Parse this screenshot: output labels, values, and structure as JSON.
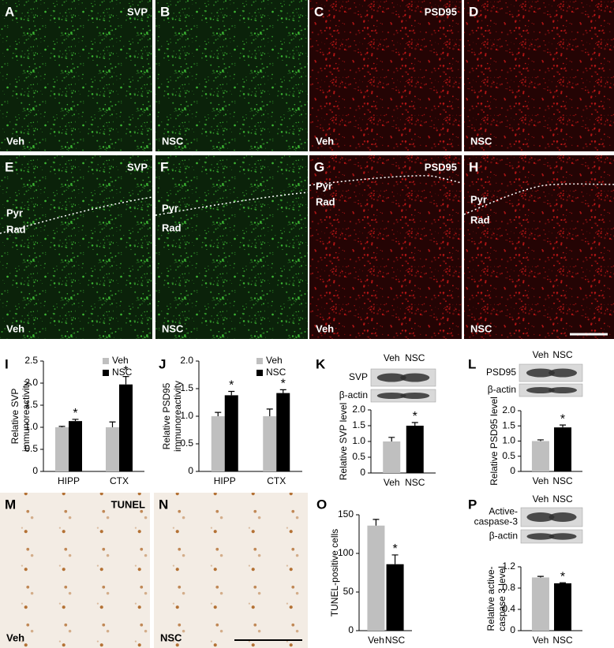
{
  "panels": [
    {
      "letter": "A",
      "stain": "SVP",
      "group": "Veh"
    },
    {
      "letter": "B",
      "group": "NSC"
    },
    {
      "letter": "C",
      "stain": "PSD95",
      "group": "Veh"
    },
    {
      "letter": "D",
      "group": "NSC"
    },
    {
      "letter": "E",
      "stain": "SVP",
      "group": "Veh",
      "layers": [
        "Pyr",
        "Rad"
      ]
    },
    {
      "letter": "F",
      "group": "NSC",
      "layers": [
        "Pyr",
        "Rad"
      ]
    },
    {
      "letter": "G",
      "stain": "PSD95",
      "group": "Veh",
      "layers": [
        "Pyr",
        "Rad"
      ]
    },
    {
      "letter": "H",
      "group": "NSC",
      "layers": [
        "Pyr",
        "Rad"
      ]
    },
    {
      "letter": "M",
      "stain": "TUNEL",
      "group": "Veh"
    },
    {
      "letter": "N",
      "group": "NSC"
    }
  ],
  "chart_data": [
    {
      "type": "bar",
      "panel": "I",
      "ylabel": [
        "Relative SVP",
        "immunoreactivity"
      ],
      "categories": [
        "HIPP",
        "CTX"
      ],
      "series": [
        {
          "name": "Veh",
          "color": "#bfbfbf",
          "values": [
            1.0,
            1.0
          ],
          "errors": [
            0.02,
            0.12
          ]
        },
        {
          "name": "NSC",
          "color": "#000000",
          "values": [
            1.14,
            1.97
          ],
          "errors": [
            0.04,
            0.18
          ],
          "significance": [
            "*",
            "*"
          ]
        }
      ],
      "ylim": [
        0,
        2.5
      ],
      "yticks": [
        0,
        0.5,
        {
          "value": 1,
          "label": "1.0"
        },
        1.5,
        {
          "value": 2,
          "label": "2.0"
        },
        2.5
      ],
      "legend": "top-right"
    },
    {
      "type": "bar",
      "panel": "J",
      "ylabel": [
        "Relative PSD95",
        "immunoreactivity"
      ],
      "categories": [
        "HIPP",
        "CTX"
      ],
      "series": [
        {
          "name": "Veh",
          "color": "#bfbfbf",
          "values": [
            1.0,
            1.0
          ],
          "errors": [
            0.07,
            0.13
          ]
        },
        {
          "name": "NSC",
          "color": "#000000",
          "values": [
            1.38,
            1.42
          ],
          "errors": [
            0.07,
            0.06
          ],
          "significance": [
            "*",
            "*"
          ]
        }
      ],
      "ylim": [
        0,
        2.0
      ],
      "yticks": [
        0,
        0.5,
        {
          "value": 1,
          "label": "1.0"
        },
        1.5,
        {
          "value": 2,
          "label": "2.0"
        }
      ],
      "legend": "top-right"
    },
    {
      "type": "bar",
      "panel": "K",
      "ylabel": [
        "Relative SVP level"
      ],
      "blot": {
        "lanes": [
          "Veh",
          "NSC"
        ],
        "rows": [
          [
            "SVP"
          ],
          [
            "β-actin"
          ]
        ]
      },
      "categories": [
        "Veh",
        "NSC"
      ],
      "values": [
        1.0,
        1.5
      ],
      "errors": [
        0.13,
        0.1
      ],
      "colors": [
        "#bfbfbf",
        "#000000"
      ],
      "significance": [
        null,
        "*"
      ],
      "ylim": [
        0,
        2.0
      ],
      "yticks": [
        0,
        0.5,
        {
          "value": 1,
          "label": "1.0"
        },
        1.5,
        {
          "value": 2,
          "label": "2.0"
        }
      ]
    },
    {
      "type": "bar",
      "panel": "L",
      "ylabel": [
        "Relative PSD95 level"
      ],
      "blot": {
        "lanes": [
          "Veh",
          "NSC"
        ],
        "rows": [
          [
            "PSD95"
          ],
          [
            "β-actin"
          ]
        ]
      },
      "categories": [
        "Veh",
        "NSC"
      ],
      "values": [
        1.0,
        1.45
      ],
      "errors": [
        0.04,
        0.08
      ],
      "colors": [
        "#bfbfbf",
        "#000000"
      ],
      "significance": [
        null,
        "*"
      ],
      "ylim": [
        0,
        2.0
      ],
      "yticks": [
        0,
        0.5,
        {
          "value": 1,
          "label": "1.0"
        },
        1.5,
        {
          "value": 2,
          "label": "2.0"
        }
      ]
    },
    {
      "type": "bar",
      "panel": "O",
      "ylabel": [
        "TUNEL-positive cells"
      ],
      "categories": [
        "Veh",
        "NSC"
      ],
      "values": [
        136,
        86
      ],
      "errors": [
        8,
        12
      ],
      "colors": [
        "#bfbfbf",
        "#000000"
      ],
      "significance": [
        null,
        "*"
      ],
      "ylim": [
        0,
        150
      ],
      "yticks": [
        0,
        50,
        100,
        150
      ]
    },
    {
      "type": "bar",
      "panel": "P",
      "ylabel": [
        "Relative active-",
        "caspase 3 level"
      ],
      "blot": {
        "lanes": [
          "Veh",
          "NSC"
        ],
        "rows": [
          [
            "Active-",
            "caspase-3"
          ],
          [
            "β-actin"
          ]
        ]
      },
      "categories": [
        "Veh",
        "NSC"
      ],
      "values": [
        1.0,
        0.89
      ],
      "errors": [
        0.02,
        0.01
      ],
      "colors": [
        "#bfbfbf",
        "#000000"
      ],
      "significance": [
        null,
        "*"
      ],
      "ylim": [
        0,
        1.2
      ],
      "yticks": [
        0,
        0.4,
        0.8,
        1.2
      ]
    }
  ]
}
